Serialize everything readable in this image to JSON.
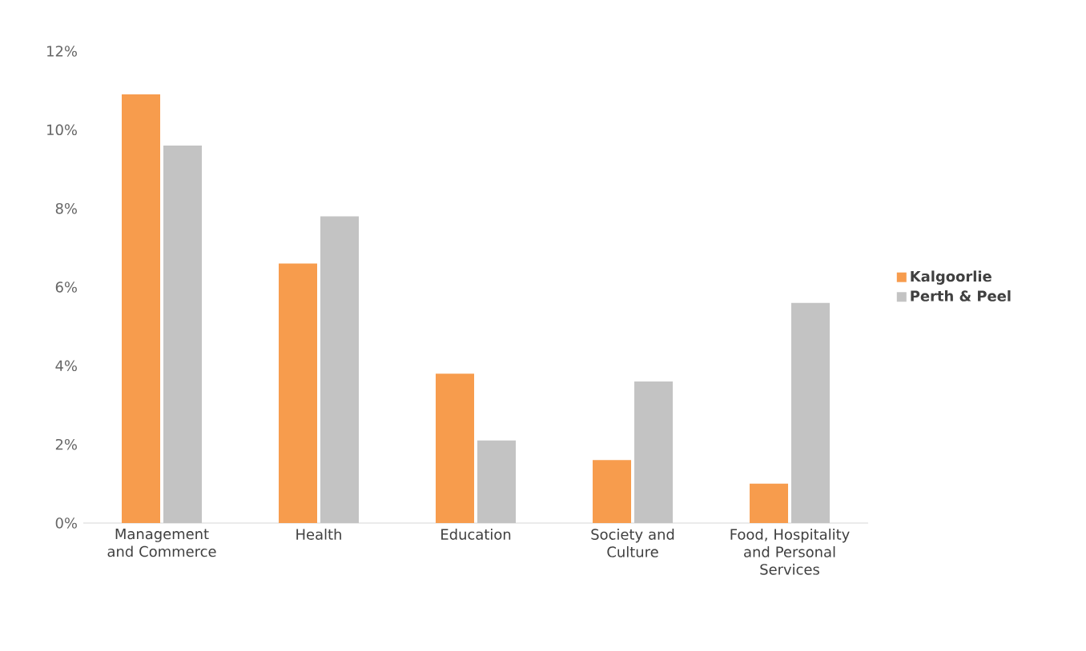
{
  "chart_data": {
    "type": "bar",
    "categories": [
      "Management and Commerce",
      "Health",
      "Education",
      "Society and Culture",
      "Food, Hospitality and Personal Services"
    ],
    "series": [
      {
        "name": "Kalgoorlie",
        "color": "#f79c4d",
        "values": [
          10.9,
          6.6,
          3.8,
          1.6,
          1.0
        ]
      },
      {
        "name": "Perth & Peel",
        "color": "#c3c3c3",
        "values": [
          9.6,
          7.8,
          2.1,
          3.6,
          5.6
        ]
      }
    ],
    "ylim": [
      0,
      12
    ],
    "yticks": [
      {
        "value": 0,
        "label": "0%"
      },
      {
        "value": 2,
        "label": "2%"
      },
      {
        "value": 4,
        "label": "4%"
      },
      {
        "value": 6,
        "label": "6%"
      },
      {
        "value": 8,
        "label": "8%"
      },
      {
        "value": 10,
        "label": "10%"
      },
      {
        "value": 12,
        "label": "12%"
      }
    ],
    "grid": false,
    "legend": "right"
  }
}
